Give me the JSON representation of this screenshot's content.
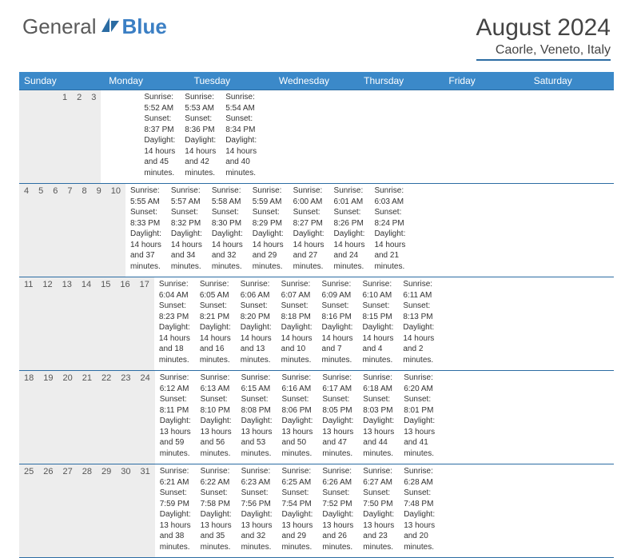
{
  "brand": {
    "part1": "General",
    "part2": "Blue"
  },
  "title": "August 2024",
  "location": "Caorle, Veneto, Italy",
  "colors": {
    "header_band": "#3b89c9",
    "rule": "#2b6ca3",
    "num_band": "#ededed",
    "text": "#333333",
    "brand_gray": "#5a5a5a",
    "brand_blue": "#3b7fc4"
  },
  "day_labels": [
    "Sunday",
    "Monday",
    "Tuesday",
    "Wednesday",
    "Thursday",
    "Friday",
    "Saturday"
  ],
  "weeks": [
    [
      {
        "n": "",
        "sr": "",
        "ss": "",
        "dl": ""
      },
      {
        "n": "",
        "sr": "",
        "ss": "",
        "dl": ""
      },
      {
        "n": "",
        "sr": "",
        "ss": "",
        "dl": ""
      },
      {
        "n": "",
        "sr": "",
        "ss": "",
        "dl": ""
      },
      {
        "n": "1",
        "sr": "Sunrise: 5:52 AM",
        "ss": "Sunset: 8:37 PM",
        "dl": "Daylight: 14 hours and 45 minutes."
      },
      {
        "n": "2",
        "sr": "Sunrise: 5:53 AM",
        "ss": "Sunset: 8:36 PM",
        "dl": "Daylight: 14 hours and 42 minutes."
      },
      {
        "n": "3",
        "sr": "Sunrise: 5:54 AM",
        "ss": "Sunset: 8:34 PM",
        "dl": "Daylight: 14 hours and 40 minutes."
      }
    ],
    [
      {
        "n": "4",
        "sr": "Sunrise: 5:55 AM",
        "ss": "Sunset: 8:33 PM",
        "dl": "Daylight: 14 hours and 37 minutes."
      },
      {
        "n": "5",
        "sr": "Sunrise: 5:57 AM",
        "ss": "Sunset: 8:32 PM",
        "dl": "Daylight: 14 hours and 34 minutes."
      },
      {
        "n": "6",
        "sr": "Sunrise: 5:58 AM",
        "ss": "Sunset: 8:30 PM",
        "dl": "Daylight: 14 hours and 32 minutes."
      },
      {
        "n": "7",
        "sr": "Sunrise: 5:59 AM",
        "ss": "Sunset: 8:29 PM",
        "dl": "Daylight: 14 hours and 29 minutes."
      },
      {
        "n": "8",
        "sr": "Sunrise: 6:00 AM",
        "ss": "Sunset: 8:27 PM",
        "dl": "Daylight: 14 hours and 27 minutes."
      },
      {
        "n": "9",
        "sr": "Sunrise: 6:01 AM",
        "ss": "Sunset: 8:26 PM",
        "dl": "Daylight: 14 hours and 24 minutes."
      },
      {
        "n": "10",
        "sr": "Sunrise: 6:03 AM",
        "ss": "Sunset: 8:24 PM",
        "dl": "Daylight: 14 hours and 21 minutes."
      }
    ],
    [
      {
        "n": "11",
        "sr": "Sunrise: 6:04 AM",
        "ss": "Sunset: 8:23 PM",
        "dl": "Daylight: 14 hours and 18 minutes."
      },
      {
        "n": "12",
        "sr": "Sunrise: 6:05 AM",
        "ss": "Sunset: 8:21 PM",
        "dl": "Daylight: 14 hours and 16 minutes."
      },
      {
        "n": "13",
        "sr": "Sunrise: 6:06 AM",
        "ss": "Sunset: 8:20 PM",
        "dl": "Daylight: 14 hours and 13 minutes."
      },
      {
        "n": "14",
        "sr": "Sunrise: 6:07 AM",
        "ss": "Sunset: 8:18 PM",
        "dl": "Daylight: 14 hours and 10 minutes."
      },
      {
        "n": "15",
        "sr": "Sunrise: 6:09 AM",
        "ss": "Sunset: 8:16 PM",
        "dl": "Daylight: 14 hours and 7 minutes."
      },
      {
        "n": "16",
        "sr": "Sunrise: 6:10 AM",
        "ss": "Sunset: 8:15 PM",
        "dl": "Daylight: 14 hours and 4 minutes."
      },
      {
        "n": "17",
        "sr": "Sunrise: 6:11 AM",
        "ss": "Sunset: 8:13 PM",
        "dl": "Daylight: 14 hours and 2 minutes."
      }
    ],
    [
      {
        "n": "18",
        "sr": "Sunrise: 6:12 AM",
        "ss": "Sunset: 8:11 PM",
        "dl": "Daylight: 13 hours and 59 minutes."
      },
      {
        "n": "19",
        "sr": "Sunrise: 6:13 AM",
        "ss": "Sunset: 8:10 PM",
        "dl": "Daylight: 13 hours and 56 minutes."
      },
      {
        "n": "20",
        "sr": "Sunrise: 6:15 AM",
        "ss": "Sunset: 8:08 PM",
        "dl": "Daylight: 13 hours and 53 minutes."
      },
      {
        "n": "21",
        "sr": "Sunrise: 6:16 AM",
        "ss": "Sunset: 8:06 PM",
        "dl": "Daylight: 13 hours and 50 minutes."
      },
      {
        "n": "22",
        "sr": "Sunrise: 6:17 AM",
        "ss": "Sunset: 8:05 PM",
        "dl": "Daylight: 13 hours and 47 minutes."
      },
      {
        "n": "23",
        "sr": "Sunrise: 6:18 AM",
        "ss": "Sunset: 8:03 PM",
        "dl": "Daylight: 13 hours and 44 minutes."
      },
      {
        "n": "24",
        "sr": "Sunrise: 6:20 AM",
        "ss": "Sunset: 8:01 PM",
        "dl": "Daylight: 13 hours and 41 minutes."
      }
    ],
    [
      {
        "n": "25",
        "sr": "Sunrise: 6:21 AM",
        "ss": "Sunset: 7:59 PM",
        "dl": "Daylight: 13 hours and 38 minutes."
      },
      {
        "n": "26",
        "sr": "Sunrise: 6:22 AM",
        "ss": "Sunset: 7:58 PM",
        "dl": "Daylight: 13 hours and 35 minutes."
      },
      {
        "n": "27",
        "sr": "Sunrise: 6:23 AM",
        "ss": "Sunset: 7:56 PM",
        "dl": "Daylight: 13 hours and 32 minutes."
      },
      {
        "n": "28",
        "sr": "Sunrise: 6:25 AM",
        "ss": "Sunset: 7:54 PM",
        "dl": "Daylight: 13 hours and 29 minutes."
      },
      {
        "n": "29",
        "sr": "Sunrise: 6:26 AM",
        "ss": "Sunset: 7:52 PM",
        "dl": "Daylight: 13 hours and 26 minutes."
      },
      {
        "n": "30",
        "sr": "Sunrise: 6:27 AM",
        "ss": "Sunset: 7:50 PM",
        "dl": "Daylight: 13 hours and 23 minutes."
      },
      {
        "n": "31",
        "sr": "Sunrise: 6:28 AM",
        "ss": "Sunset: 7:48 PM",
        "dl": "Daylight: 13 hours and 20 minutes."
      }
    ]
  ]
}
